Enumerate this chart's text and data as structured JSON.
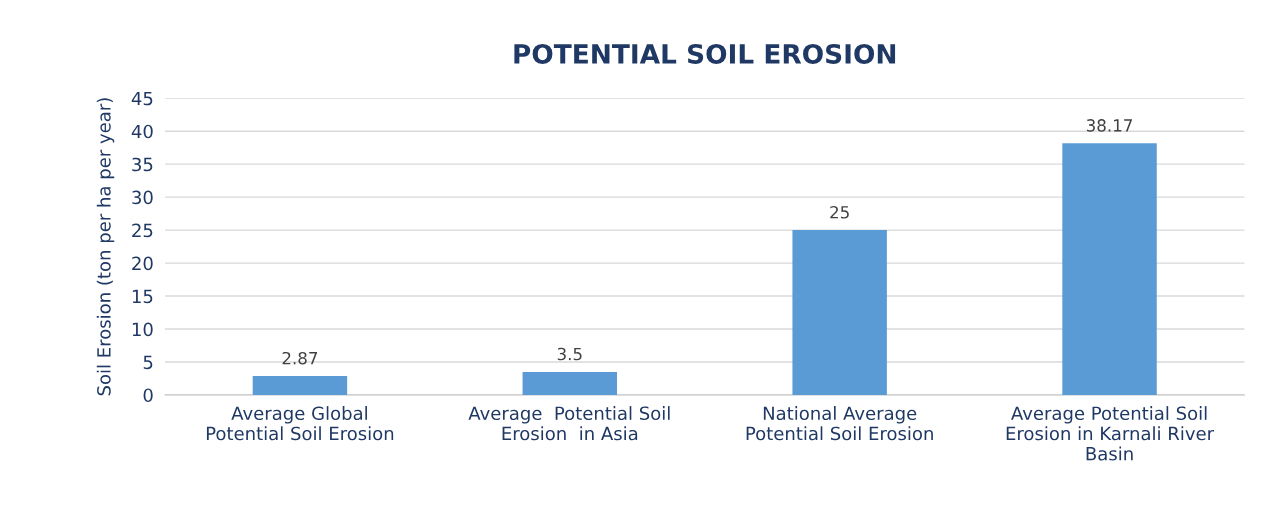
{
  "chart_data": {
    "type": "bar",
    "title": "POTENTIAL SOIL EROSION",
    "ylabel": "Soil Erosion (ton per ha per year)",
    "categories": [
      "Average Global\nPotential Soil Erosion",
      "Average  Potential Soil\nErosion  in Asia",
      "National Average\nPotential Soil Erosion",
      "Average Potential Soil\nErosion in Karnali River\nBasin"
    ],
    "values": [
      2.87,
      3.5,
      25,
      38.17
    ],
    "color": "#5b9bd5",
    "ylim": [
      0,
      45
    ],
    "yticks": [
      0,
      5,
      10,
      15,
      20,
      25,
      30,
      35,
      40,
      45
    ],
    "grid": "y",
    "data_labels": true
  }
}
